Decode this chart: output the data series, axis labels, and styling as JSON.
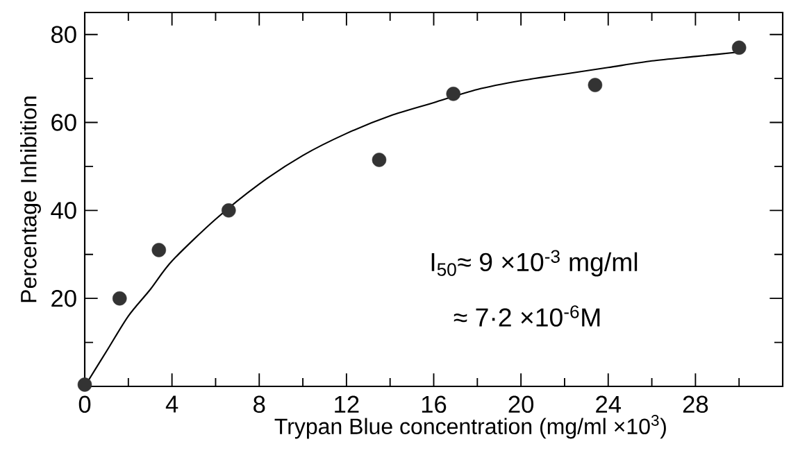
{
  "chart_data": {
    "type": "scatter",
    "xlabel": "Trypan Blue concentration (mg/ml ×10$^{3}$)",
    "ylabel": "Percentage Inhibition",
    "annotations": [
      "I$_{50}$≈ 9 ×10$^{-3}$ mg/ml",
      "≈ 7·2 ×10$^{-6}$M"
    ],
    "xlim": [
      0,
      32
    ],
    "ylim": [
      0,
      85
    ],
    "xticks": [
      0,
      {
        "value": 2,
        "label": null
      },
      4,
      {
        "value": 6,
        "label": null
      },
      8,
      {
        "value": 10,
        "label": null
      },
      12,
      {
        "value": 14,
        "label": null
      },
      16,
      {
        "value": 18,
        "label": null
      },
      20,
      {
        "value": 22,
        "label": null
      },
      24,
      {
        "value": 26,
        "label": null
      },
      28,
      {
        "value": 30,
        "label": null
      }
    ],
    "yticks": [
      {
        "value": 0,
        "label": null
      },
      {
        "value": 10,
        "label": null
      },
      20,
      {
        "value": 30,
        "label": null
      },
      40,
      {
        "value": 50,
        "label": null
      },
      60,
      {
        "value": 70,
        "label": null
      },
      80
    ],
    "grid": false,
    "series": [
      {
        "marker": "circle",
        "color": "#333333",
        "x": [
          0,
          1.6,
          3.4,
          6.6,
          13.5,
          16.9,
          23.4,
          30.0
        ],
        "values": [
          0.4,
          20,
          31,
          40,
          51.5,
          66.5,
          68.5,
          77
        ]
      },
      {
        "type": "line",
        "marker": "none",
        "line_style": "solid",
        "color": "#000000",
        "x": [
          0,
          1,
          2,
          3,
          4,
          6,
          8,
          10,
          12,
          14,
          16,
          18,
          20,
          22,
          24,
          26,
          28,
          30
        ],
        "values": [
          0,
          8,
          16,
          22,
          28.5,
          38,
          46,
          52.5,
          57.5,
          61.5,
          64.5,
          67.5,
          69.5,
          71,
          72.5,
          74,
          75,
          76
        ]
      }
    ]
  }
}
